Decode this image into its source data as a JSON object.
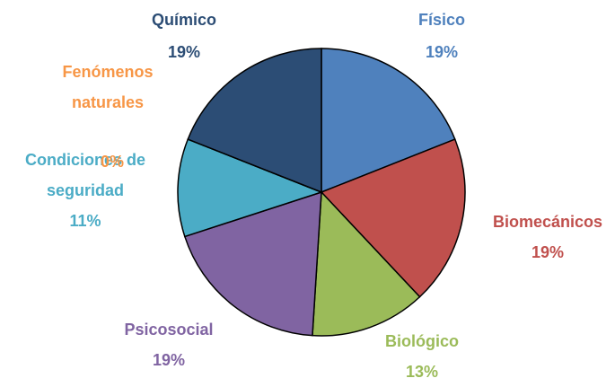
{
  "chart_data": {
    "type": "pie",
    "categories": [
      "Físico",
      "Biomecánicos",
      "Biológico",
      "Psicosocial",
      "Condiciones de seguridad",
      "Fenómenos naturales",
      "Químico"
    ],
    "values": [
      19,
      19,
      13,
      19,
      11,
      0,
      19
    ],
    "value_labels": [
      "19%",
      "19%",
      "13%",
      "19%",
      "11%",
      "0%",
      "19%"
    ],
    "colors": [
      "#4f81bd",
      "#c0504d",
      "#9bbb59",
      "#8064a2",
      "#4bacc6",
      "#f79646",
      "#2c4d75"
    ]
  }
}
